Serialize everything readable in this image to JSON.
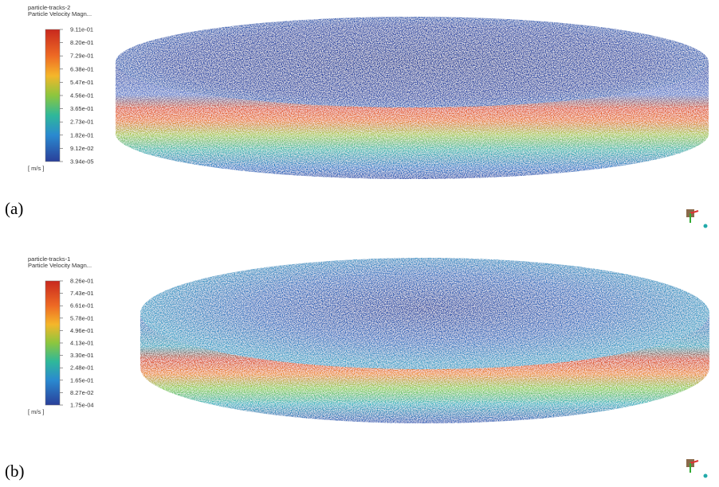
{
  "panels": [
    {
      "label": "(a)",
      "title": "particle-tracks-2",
      "subtitle": "Particle Velocity Magn...",
      "ticks": [
        "9.11e-01",
        "8.20e-01",
        "7.29e-01",
        "6.38e-01",
        "5.47e-01",
        "4.56e-01",
        "3.65e-01",
        "2.73e-01",
        "1.82e-01",
        "9.12e-02",
        "3.94e-05"
      ],
      "unit": "[ m/s ]"
    },
    {
      "label": "(b)",
      "title": "particle-tracks-1",
      "subtitle": "Particle Velocity Magn...",
      "ticks": [
        "8.26e-01",
        "7.43e-01",
        "6.61e-01",
        "5.78e-01",
        "4.96e-01",
        "4.13e-01",
        "3.30e-01",
        "2.48e-01",
        "1.65e-01",
        "8.27e-02",
        "1.75e-04"
      ],
      "unit": "[ m/s ]"
    }
  ]
}
